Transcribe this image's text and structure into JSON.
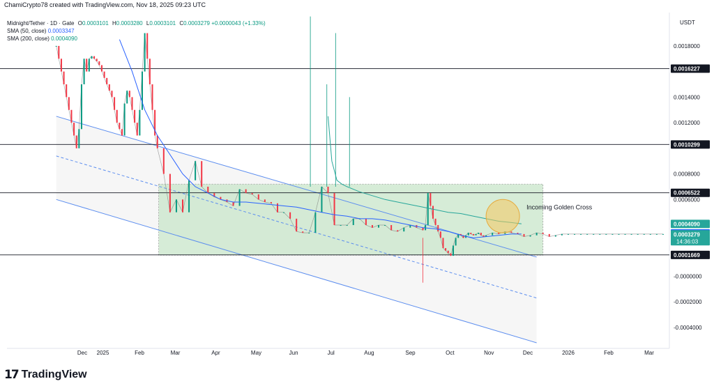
{
  "header": {
    "attribution": "ChamiCrypto78 created with TradingView.com, Nov 18, 2025 09:23 UTC",
    "symbol": "Midnight/Tether · 1D · Gate",
    "ohlc": {
      "o_label": "O",
      "o": "0.0003101",
      "h_label": "H",
      "h": "0.0003280",
      "l_label": "L",
      "l": "0.0003101",
      "c_label": "C",
      "c": "0.0003279",
      "change": "+0.0000043 (+1.33%)"
    },
    "sma50_label": "SMA (50, close)",
    "sma50_value": "0.0003347",
    "sma200_label": "SMA (200, close)",
    "sma200_value": "0.0004090"
  },
  "currency": "USDT",
  "brand": {
    "icon": "17",
    "name": "TradingView"
  },
  "colors": {
    "sma50": "#2962ff",
    "sma200": "#26a69a",
    "up": "#089981",
    "down": "#f23645",
    "channel": "#5b8def",
    "zone_fill": "#c8e6c9",
    "zone_border": "#9e9e9e",
    "golden_circle": "#f6c85f",
    "label_dark": "#131722",
    "label_blue": "#2962ff",
    "label_green": "#26a69a"
  },
  "chart_data": {
    "type": "candlestick",
    "title": "Midnight/Tether · 1D · Gate",
    "xlabel": "",
    "ylabel": "",
    "x_ticks": [
      "Dec",
      "2025",
      "Feb",
      "Mar",
      "Apr",
      "May",
      "Jun",
      "Jul",
      "Aug",
      "Sep",
      "Oct",
      "Nov",
      "Dec",
      "2026",
      "Feb",
      "Mar"
    ],
    "y_ticks": [
      0.0018,
      0.0014,
      0.0012,
      0.0008,
      0.0006,
      -0.0,
      -0.0002,
      -0.0004
    ],
    "y_tick_labels": [
      "0.0018000",
      "0.0014000",
      "0.0012000",
      "0.0008000",
      "0.0006000",
      "-0.0000000",
      "-0.0002000",
      "-0.0004000"
    ],
    "ylim": [
      -0.00052,
      0.00205
    ],
    "xlim_days": [
      -39,
      485
    ],
    "price_series": {
      "name": "Midnight/Tether",
      "x_day": [
        0,
        2,
        4,
        6,
        8,
        10,
        12,
        14,
        16,
        18,
        20,
        22,
        24,
        26,
        28,
        30,
        32,
        34,
        36,
        38,
        40,
        42,
        44,
        46,
        48,
        50,
        52,
        54,
        56,
        58,
        60,
        62,
        64,
        66,
        68,
        70,
        72,
        74,
        76,
        78,
        80,
        85,
        90,
        95,
        100,
        105,
        110,
        115,
        120,
        125,
        130,
        135,
        140,
        145,
        150,
        155,
        160,
        165,
        170,
        175,
        180,
        185,
        190,
        195,
        200,
        205,
        210,
        215,
        220,
        225,
        230,
        235,
        240,
        245,
        250,
        255,
        260,
        265,
        270,
        275,
        280,
        285,
        290,
        292,
        294,
        296,
        298,
        300,
        302,
        304,
        306,
        308,
        310,
        312,
        314,
        316,
        318,
        320,
        322,
        324,
        326,
        328,
        330,
        332,
        334,
        336,
        338,
        340,
        345,
        350,
        355,
        360,
        365,
        370,
        375,
        380,
        385,
        390,
        395,
        400,
        405,
        410,
        415,
        420,
        425,
        430,
        435,
        440,
        445,
        450,
        455,
        460,
        465,
        470,
        475,
        480
      ],
      "close": [
        0.0018,
        0.0017,
        0.0016,
        0.0015,
        0.0014,
        0.0013,
        0.0012,
        0.0011,
        0.001,
        0.00115,
        0.0015,
        0.0017,
        0.0016,
        0.0017,
        0.00172,
        0.0017,
        0.00168,
        0.00165,
        0.0016,
        0.00155,
        0.0015,
        0.00145,
        0.0014,
        0.0013,
        0.0012,
        0.00115,
        0.0011,
        0.00135,
        0.00145,
        0.0014,
        0.0013,
        0.0012,
        0.0011,
        0.0013,
        0.0016,
        0.0019,
        0.0017,
        0.0015,
        0.0013,
        0.0011,
        0.001,
        0.0008,
        0.0005,
        0.0006,
        0.0005,
        0.00075,
        0.0009,
        0.0007,
        0.00065,
        0.00062,
        0.0006,
        0.00058,
        0.00055,
        0.00068,
        0.00065,
        0.00064,
        0.0006,
        0.00058,
        0.00057,
        0.0005,
        0.0005,
        0.00045,
        0.00035,
        0.00034,
        0.00034,
        0.0005,
        0.0007,
        0.00065,
        0.0004,
        0.0004,
        0.0004,
        0.00045,
        0.00045,
        0.0004,
        0.00038,
        0.0004,
        0.0004,
        0.00036,
        0.00035,
        0.00038,
        0.0004,
        0.00038,
        0.00036,
        0.0004,
        0.00065,
        0.00055,
        0.00045,
        0.0004,
        0.00035,
        0.0003,
        0.00022,
        0.0002,
        0.00018,
        0.00016,
        0.00024,
        0.0003,
        0.00033,
        0.00032,
        0.0003,
        0.00032,
        0.00034,
        0.00033,
        0.00032,
        0.00033,
        0.00034,
        0.00032,
        0.00031,
        0.00032,
        0.00034,
        0.00033,
        0.00035,
        0.00034,
        0.00033,
        0.00031,
        0.00032,
        0.00034,
        0.00033,
        0.00031,
        0.00032,
        0.00033,
        0.00033,
        0.00033,
        0.00033,
        0.00033,
        0.00033,
        0.00033,
        0.00033,
        0.00033,
        0.00033,
        0.00033,
        0.00033,
        0.00033,
        0.00033,
        0.00033,
        0.00033,
        0.00033
      ]
    },
    "sma50": {
      "name": "SMA (50, close)",
      "x_day": [
        50,
        60,
        70,
        80,
        90,
        100,
        110,
        120,
        130,
        140,
        150,
        160,
        170,
        180,
        190,
        200,
        210,
        220,
        230,
        240,
        250,
        260,
        270,
        280,
        290,
        300,
        310,
        320,
        330,
        340,
        350,
        360,
        368
      ],
      "y": [
        0.00185,
        0.0016,
        0.0013,
        0.0011,
        0.00095,
        0.0008,
        0.0007,
        0.00065,
        0.0006,
        0.00058,
        0.00058,
        0.00057,
        0.00056,
        0.00055,
        0.00054,
        0.00052,
        0.0005,
        0.00048,
        0.00047,
        0.00045,
        0.00045,
        0.00044,
        0.00042,
        0.0004,
        0.00038,
        0.00037,
        0.00035,
        0.00032,
        0.0003,
        0.00031,
        0.00032,
        0.00033,
        0.00033
      ]
    },
    "sma200": {
      "name": "SMA (200, close)",
      "x_day": [
        215,
        218,
        222,
        226,
        230,
        240,
        250,
        260,
        270,
        280,
        290,
        300,
        310,
        320,
        330,
        340,
        350,
        360,
        368
      ],
      "y": [
        0.00125,
        0.0009,
        0.00075,
        0.00072,
        0.0007,
        0.00066,
        0.00063,
        0.0006,
        0.00058,
        0.00056,
        0.00054,
        0.00052,
        0.0005,
        0.00049,
        0.00047,
        0.00045,
        0.00043,
        0.00042,
        0.00041
      ]
    },
    "spikes": [
      {
        "x_day": 201,
        "high": 0.00203
      },
      {
        "x_day": 221,
        "high": 0.0019
      },
      {
        "x_day": 214,
        "high": 0.0015
      },
      {
        "x_day": 232,
        "high": 0.0014
      },
      {
        "x_day": 290,
        "low": -5e-05
      }
    ],
    "horizontal_levels": [
      {
        "value": 0.0016227,
        "label": "0.0016227"
      },
      {
        "value": 0.0010299,
        "label": "0.0010299"
      },
      {
        "value": 0.0006522,
        "label": "0.0006522"
      },
      {
        "value": 0.0001669,
        "label": "0.0001669"
      }
    ],
    "price_labels": [
      {
        "value": 0.000409,
        "label": "0.0004090",
        "kind": "sma200"
      },
      {
        "value": 0.0003347,
        "label": "0.0003347",
        "kind": "sma50"
      },
      {
        "value": 0.0003279,
        "label": "0.0003279",
        "kind": "price",
        "sub": "14:36:03"
      }
    ],
    "channel": {
      "upper": {
        "day_start": 0,
        "y_start": 0.00125,
        "day_end": 380,
        "y_end": 0.00015
      },
      "middle": {
        "day_start": 0,
        "y_start": 0.00094,
        "day_end": 380,
        "y_end": -0.00017
      },
      "lower": {
        "day_start": 0,
        "y_start": 0.0006,
        "day_end": 380,
        "y_end": -0.00052
      },
      "fill_day_end": 380
    },
    "accumulation_zone": {
      "day_start": 81,
      "day_end": 385,
      "top": 0.00072,
      "bottom": 0.000165
    },
    "annotation": {
      "text": "Incoming Golden Cross",
      "x_day": 340,
      "y": 0.000415
    }
  }
}
